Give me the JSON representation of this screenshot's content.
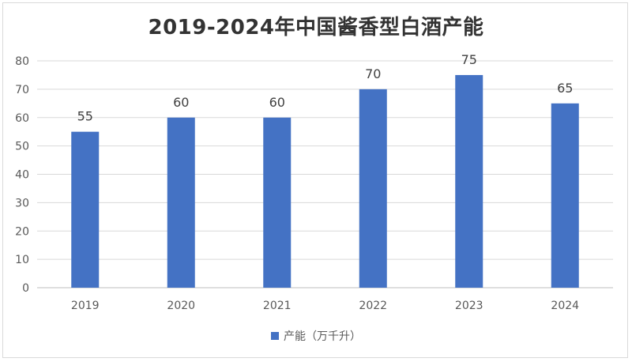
{
  "chart_data": {
    "type": "bar",
    "title": "2019-2024年中国酱香型白酒产能",
    "categories": [
      "2019",
      "2020",
      "2021",
      "2022",
      "2023",
      "2024"
    ],
    "series": [
      {
        "name": "产能（万千升）",
        "values": [
          55,
          60,
          60,
          70,
          75,
          65
        ],
        "color": "#4472c4"
      }
    ],
    "xlabel": "",
    "ylabel": "",
    "ylim": [
      0,
      80
    ],
    "yticks": [
      0,
      10,
      20,
      30,
      40,
      50,
      60,
      70,
      80
    ],
    "data_labels": true,
    "grid": true,
    "legend_position": "bottom"
  }
}
